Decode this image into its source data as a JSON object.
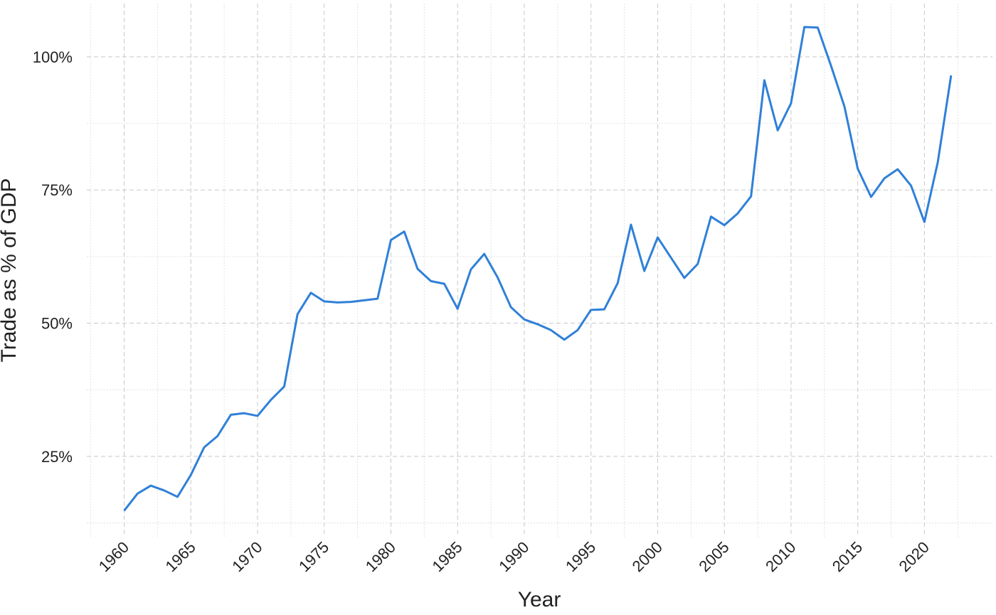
{
  "chart_data": {
    "type": "line",
    "x_label": "Year",
    "y_label": "Trade as % of GDP",
    "x": [
      1960,
      1961,
      1962,
      1963,
      1964,
      1965,
      1966,
      1967,
      1968,
      1969,
      1970,
      1971,
      1972,
      1973,
      1974,
      1975,
      1976,
      1977,
      1978,
      1979,
      1980,
      1981,
      1982,
      1983,
      1984,
      1985,
      1986,
      1987,
      1988,
      1989,
      1990,
      1991,
      1992,
      1993,
      1994,
      1995,
      1996,
      1997,
      1998,
      1999,
      2000,
      2001,
      2002,
      2003,
      2004,
      2005,
      2006,
      2007,
      2008,
      2009,
      2010,
      2011,
      2012,
      2013,
      2014,
      2015,
      2016,
      2017,
      2018,
      2019,
      2020,
      2021,
      2022
    ],
    "series": [
      {
        "color": "#2f80d8",
        "values": [
          14.8,
          18.0,
          19.5,
          18.6,
          17.4,
          21.5,
          26.7,
          28.8,
          32.8,
          33.1,
          32.6,
          35.6,
          38.1,
          51.7,
          55.7,
          54.1,
          53.9,
          54.0,
          54.3,
          54.6,
          65.6,
          67.2,
          60.2,
          57.9,
          57.4,
          52.7,
          60.1,
          63.0,
          58.6,
          53.0,
          50.7,
          49.8,
          48.7,
          46.9,
          48.7,
          52.5,
          52.6,
          57.5,
          68.5,
          59.8,
          66.1,
          62.3,
          58.5,
          61.1,
          70.0,
          68.4,
          70.6,
          73.8,
          95.6,
          86.2,
          91.3,
          105.6,
          105.5,
          98.3,
          90.7,
          79.0,
          73.7,
          77.2,
          78.9,
          75.8,
          69.0,
          80.2,
          96.5
        ]
      }
    ],
    "xlim": [
      1957.2,
      2025.1
    ],
    "ylim": [
      9.9,
      110
    ],
    "xticks": [
      1960,
      1965,
      1970,
      1975,
      1980,
      1985,
      1990,
      1995,
      2000,
      2005,
      2010,
      2015,
      2020
    ],
    "yticks": [
      {
        "value": 25,
        "label": "25%"
      },
      {
        "value": 50,
        "label": "50%"
      },
      {
        "value": 75,
        "label": "75%"
      },
      {
        "value": 100,
        "label": "100%"
      }
    ],
    "x_minor_ticks": [
      1957.5,
      1962.5,
      1967.5,
      1972.5,
      1977.5,
      1982.5,
      1987.5,
      1992.5,
      1997.5,
      2002.5,
      2007.5,
      2012.5,
      2017.5,
      2022.5
    ],
    "y_minor_ticks": [
      12.5,
      37.5,
      62.5,
      87.5
    ],
    "grid": true
  }
}
